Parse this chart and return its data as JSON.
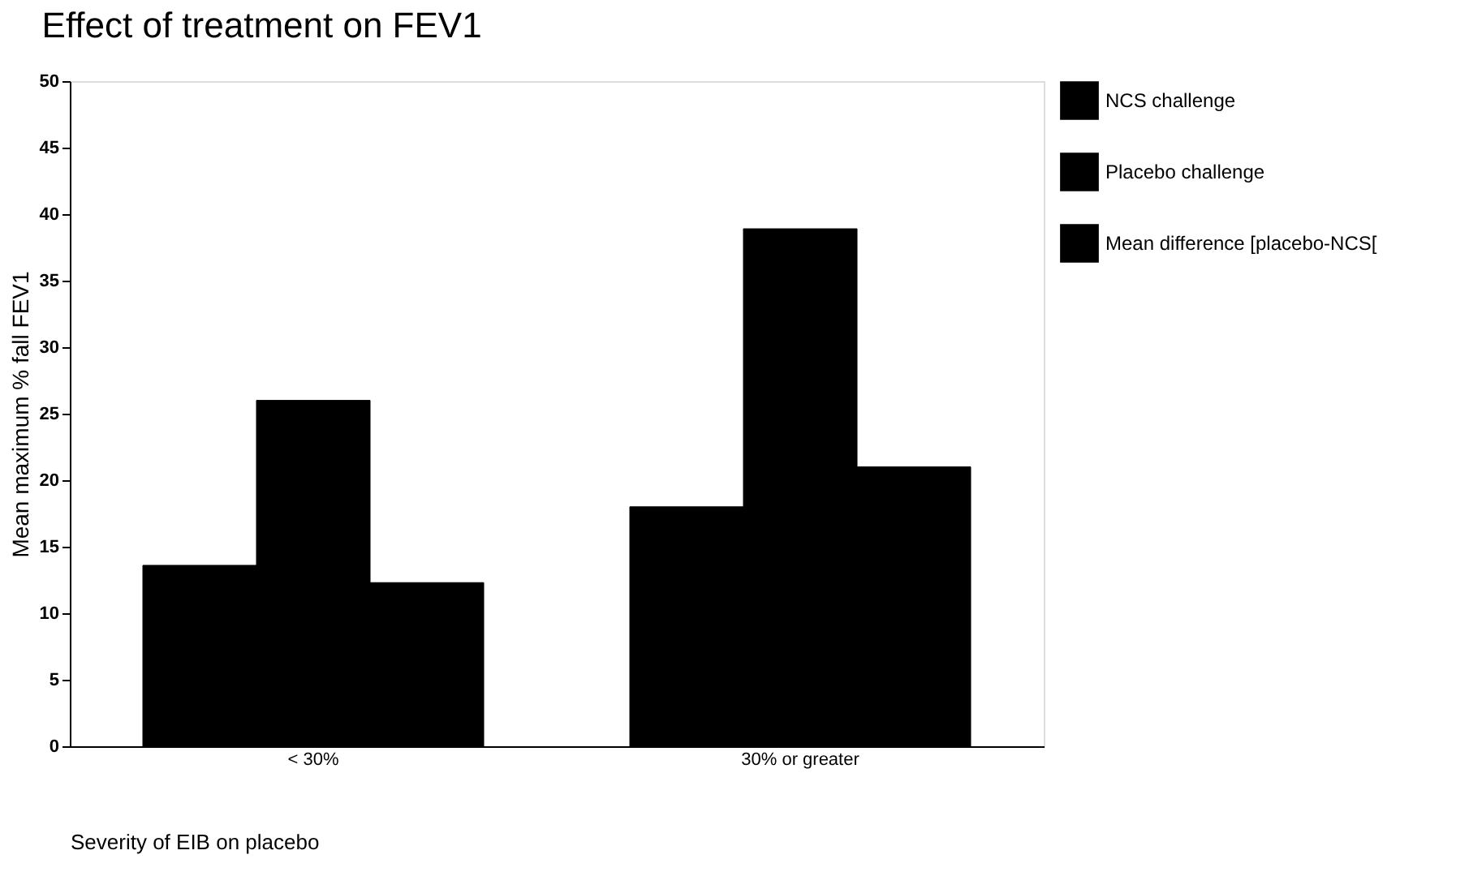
{
  "chart_data": {
    "type": "bar",
    "title": "Effect of treatment on FEV1",
    "xlabel": "Severity of EIB on placebo",
    "ylabel": "Mean maximum % fall FEV1",
    "categories": [
      "< 30%",
      "30% or greater"
    ],
    "series": [
      {
        "name": "NCS challenge",
        "color": "#000000",
        "values": [
          13.6,
          18.0
        ]
      },
      {
        "name": "Placebo challenge",
        "color": "#000000",
        "values": [
          26.0,
          38.9
        ]
      },
      {
        "name": "Mean difference [placebo-NCS[",
        "color": "#000000",
        "values": [
          12.3,
          21.0
        ]
      }
    ],
    "ylim": [
      0,
      50
    ],
    "yticks": [
      0,
      5,
      10,
      15,
      20,
      25,
      30,
      35,
      40,
      45,
      50
    ],
    "grid": false,
    "legend": "right"
  }
}
